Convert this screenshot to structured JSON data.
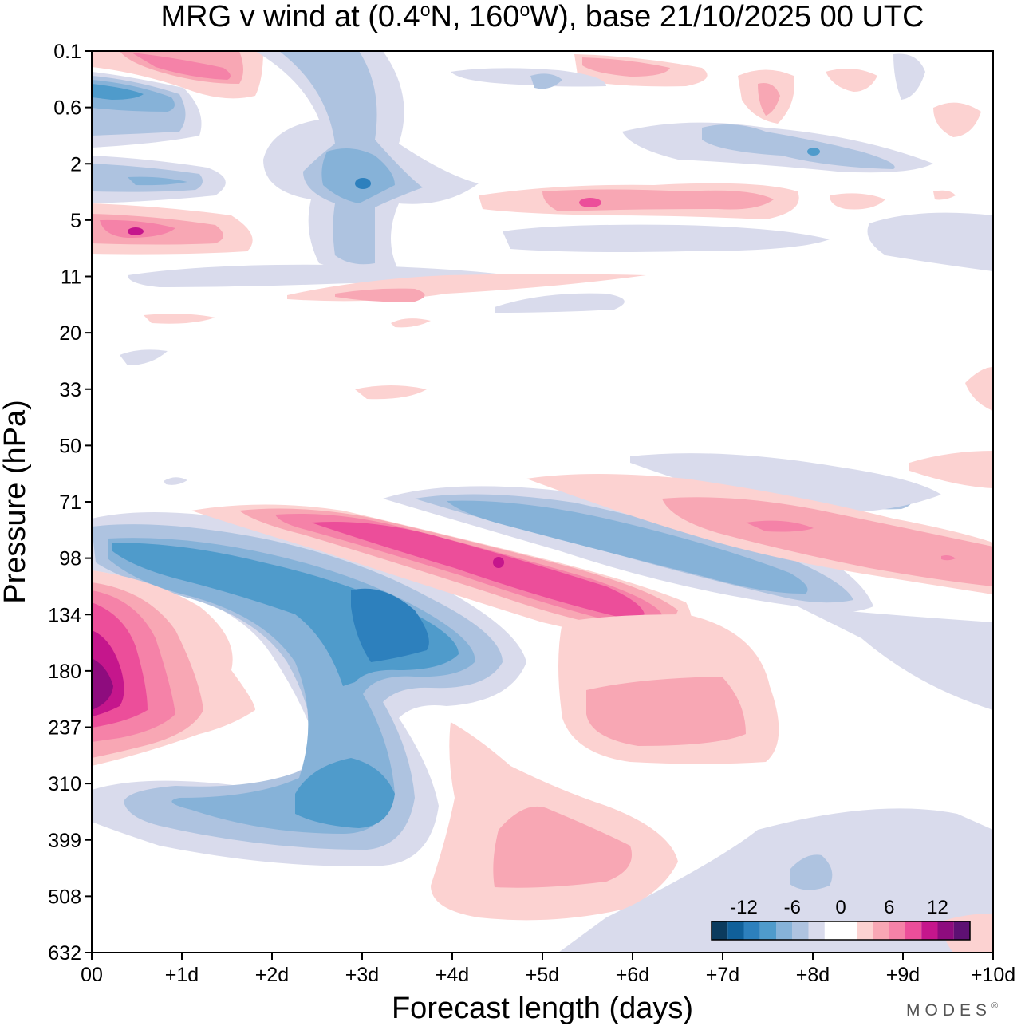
{
  "chart_data": {
    "type": "heatmap",
    "title": "MRG v wind at (0.4°N, 160°W),  base 21/10/2025  00 UTC",
    "title_parts": {
      "prefix": "MRG v wind at (0.4",
      "deg1": "o",
      "mid": "N, 160",
      "deg2": "o",
      "suffix": "W),  base 21/10/2025  00 UTC"
    },
    "xlabel": "Forecast length (days)",
    "ylabel": "Pressure (hPa)",
    "x_ticks": [
      0,
      1,
      2,
      3,
      4,
      5,
      6,
      7,
      8,
      9,
      10
    ],
    "x_tick_labels": [
      "00",
      "+1d",
      "+2d",
      "+3d",
      "+4d",
      "+5d",
      "+6d",
      "+7d",
      "+8d",
      "+9d",
      "+10d"
    ],
    "y_ticks": [
      0.1,
      0.6,
      2,
      5,
      11,
      20,
      33,
      50,
      71,
      98,
      134,
      180,
      237,
      310,
      399,
      508,
      632
    ],
    "y_tick_labels": [
      "0.1",
      "0.6",
      "2",
      "5",
      "11",
      "20",
      "33",
      "50",
      "71",
      "98",
      "134",
      "180",
      "237",
      "310",
      "399",
      "508",
      "632"
    ],
    "xlim": [
      0,
      10
    ],
    "ylim_level_index": [
      0,
      16
    ],
    "colorbar": {
      "labels": [
        "-12",
        "-6",
        "0",
        "6",
        "12"
      ],
      "label_values": [
        -12,
        -6,
        0,
        6,
        12
      ],
      "bins": [
        -16,
        -14,
        -12,
        -10,
        -8,
        -6,
        -4,
        -2,
        2,
        4,
        6,
        8,
        10,
        12,
        14,
        16
      ],
      "colors": [
        "#0b3b5e",
        "#10609a",
        "#2d80bd",
        "#4f9bcb",
        "#86b2d8",
        "#aec3e0",
        "#d9dbec",
        "#ffffff",
        "#fcd2d1",
        "#f8a7b4",
        "#f582a8",
        "#ec4e9a",
        "#c5168c",
        "#8e0c7e",
        "#5e1073"
      ]
    },
    "features": [
      {
        "name": "upper-negative-lobe-0.6hPa",
        "sign": "negative",
        "x": [
          0,
          1.2
        ],
        "p": [
          0.3,
          1.2
        ],
        "peak": -10
      },
      {
        "name": "upper-positive-lobe-0.1hPa",
        "sign": "positive",
        "x": [
          0.1,
          1.8
        ],
        "p": [
          0.1,
          0.4
        ],
        "peak": 8
      },
      {
        "name": "upper-negative-column-day3",
        "sign": "negative",
        "x": [
          2.4,
          3.8
        ],
        "p": [
          0.1,
          8
        ],
        "peak": -10
      },
      {
        "name": "negative-lobe-2hPa",
        "sign": "negative",
        "x": [
          0,
          1.4
        ],
        "p": [
          2,
          4
        ],
        "peak": -8
      },
      {
        "name": "positive-lobe-5hPa",
        "sign": "positive",
        "x": [
          0,
          1.7
        ],
        "p": [
          4,
          7
        ],
        "peak": 10
      },
      {
        "name": "positive-band-4hPa",
        "sign": "positive",
        "x": [
          4.5,
          8.0
        ],
        "p": [
          3,
          6
        ],
        "peak": 6
      },
      {
        "name": "negative-band-2hPa",
        "sign": "negative",
        "x": [
          6.5,
          9.2
        ],
        "p": [
          1,
          3
        ],
        "peak": -6
      },
      {
        "name": "positive-tilted-band-lower",
        "sign": "positive",
        "x": [
          2.0,
          6.3
        ],
        "p": [
          80,
          140
        ],
        "peak": 12
      },
      {
        "name": "negative-tilted-band-lower",
        "sign": "negative",
        "x": [
          0.1,
          8.5
        ],
        "p": [
          70,
          140
        ],
        "peak": -8
      },
      {
        "name": "negative-lobe-day3-134hPa",
        "sign": "negative",
        "x": [
          2.5,
          4.5
        ],
        "p": [
          110,
          180
        ],
        "peak": -10
      },
      {
        "name": "positive-lobe-day0-180hPa",
        "sign": "positive",
        "x": [
          0,
          1.8
        ],
        "p": [
          110,
          260
        ],
        "peak": 15
      },
      {
        "name": "negative-lobe-day3-350hPa",
        "sign": "negative",
        "x": [
          0.4,
          4.0
        ],
        "p": [
          260,
          420
        ],
        "peak": -8
      },
      {
        "name": "positive-lobe-day5-420hPa",
        "sign": "positive",
        "x": [
          4.0,
          6.8
        ],
        "p": [
          250,
          560
        ],
        "peak": 6
      },
      {
        "name": "positive-lobe-day6-220hPa",
        "sign": "positive",
        "x": [
          5.1,
          7.6
        ],
        "p": [
          130,
          320
        ],
        "peak": 6
      },
      {
        "name": "positive-tilted-band-upper",
        "sign": "positive",
        "x": [
          4.9,
          10.0
        ],
        "p": [
          65,
          125
        ],
        "peak": 10
      }
    ]
  },
  "branding": {
    "text": "MODES",
    "mark": "®"
  }
}
